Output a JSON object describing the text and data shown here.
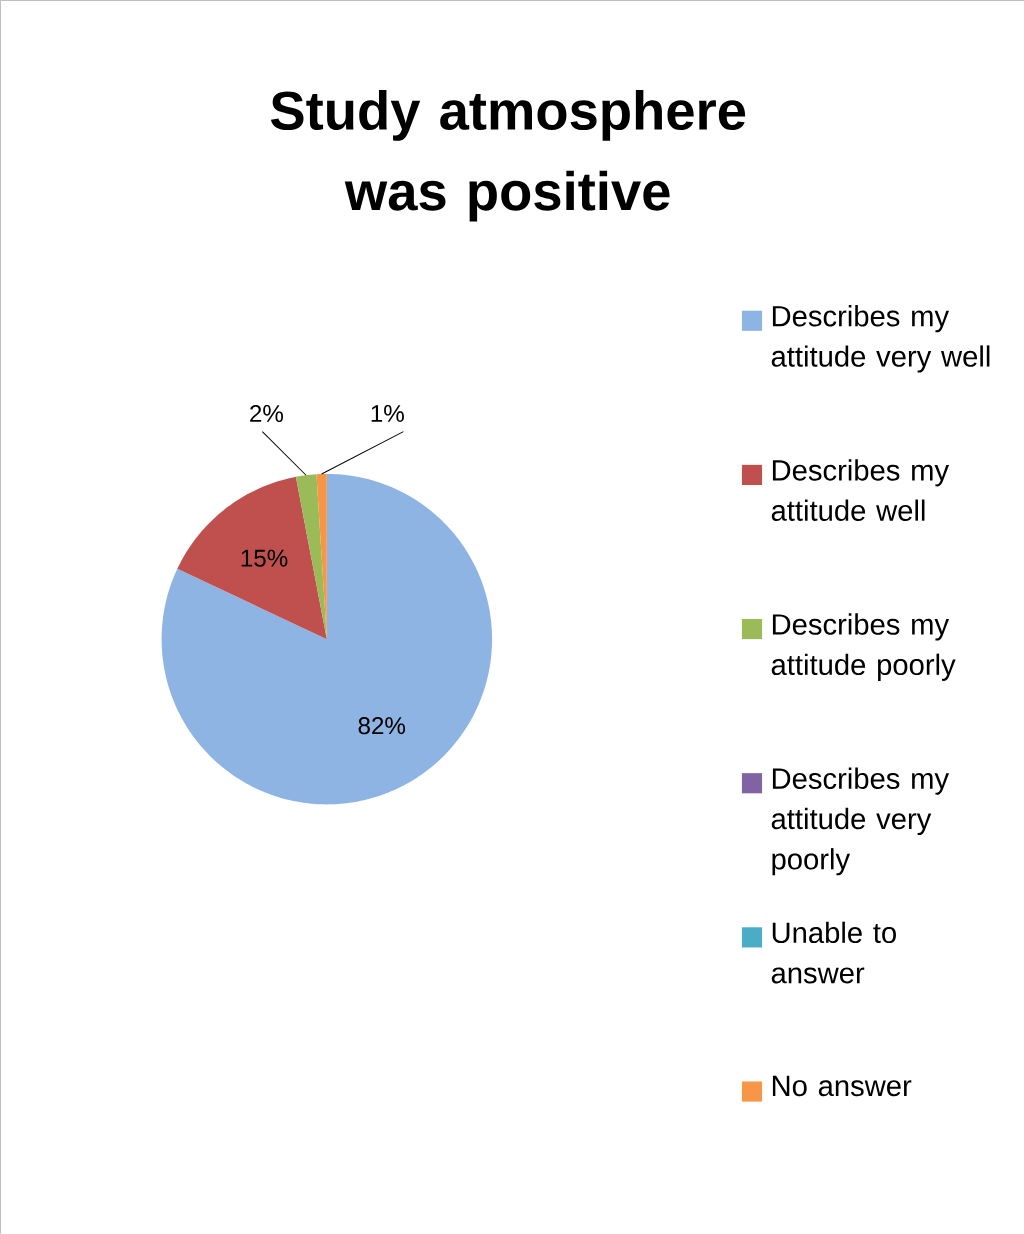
{
  "chart_data": {
    "type": "pie",
    "title": "Study atmosphere was positive",
    "categories": [
      "Describes my attitude very well",
      "Describes my attitude well",
      "Describes my attitude poorly",
      "Describes my attitude very poorly",
      "Unable to answer",
      "No answer"
    ],
    "values": [
      82,
      15,
      2,
      0,
      0,
      1
    ],
    "colors": [
      "#8eb4e3",
      "#c0504d",
      "#9bbb59",
      "#8064a2",
      "#4bacc6",
      "#f79646"
    ],
    "value_labels": [
      "82%",
      "15%",
      "2%",
      null,
      null,
      "1%"
    ],
    "legend": "right"
  }
}
